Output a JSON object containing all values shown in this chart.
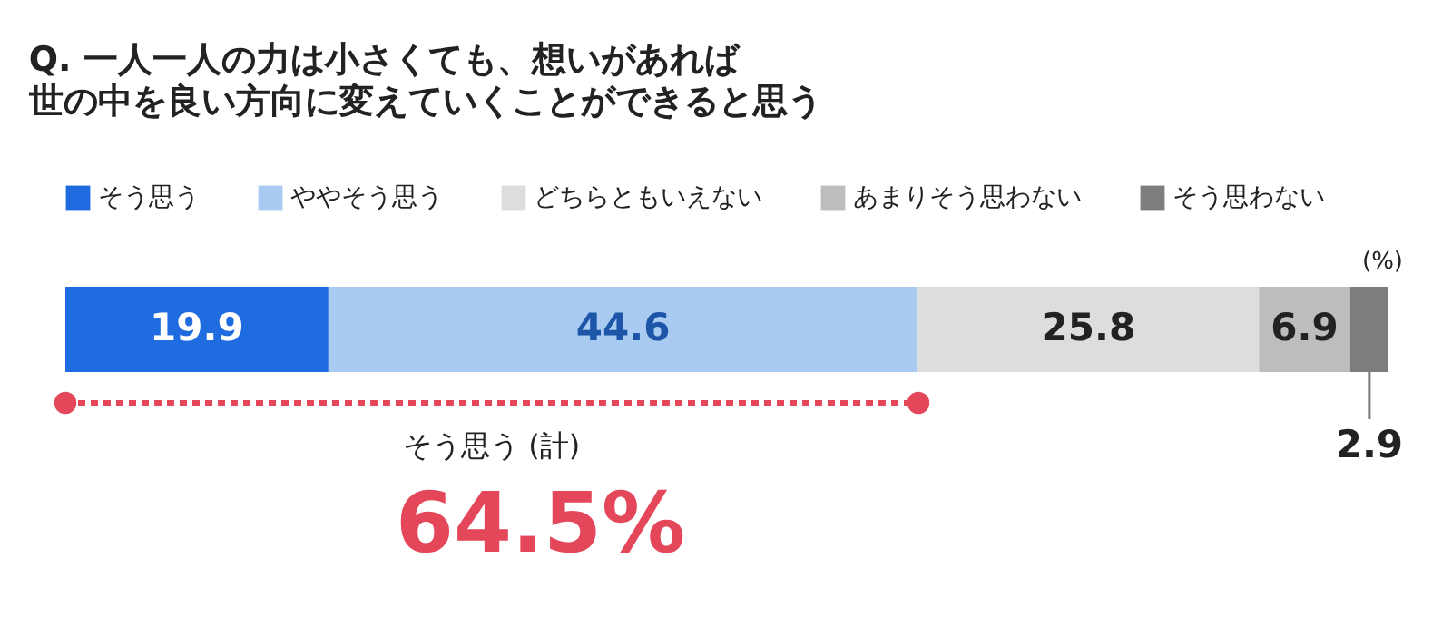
{
  "chart_data": {
    "type": "bar",
    "orientation": "horizontal",
    "stacked": true,
    "data_labels": true,
    "legend": "top left",
    "title": "Q. 一人一人の力は小さくても、想いがあれば",
    "subtitle": "世の中を良い方向に変えていくことができると思う",
    "categories": [
      null
    ],
    "series": [
      {
        "name": "そう思う",
        "color": "#1f6be0",
        "values": [
          19.9
        ]
      },
      {
        "name": "ややそう思う",
        "color": "#a9cbf1",
        "values": [
          44.6
        ]
      },
      {
        "name": "どちらともいえない",
        "color": "#dddddd",
        "values": [
          25.8
        ]
      },
      {
        "name": "あまりそう思わない",
        "color": "#bdbdbd",
        "values": [
          6.9
        ]
      },
      {
        "name": "そう思わない",
        "color": "#7d7d7d",
        "values": [
          2.9
        ]
      }
    ],
    "annotations": [
      "(%)",
      "そう思う (計)",
      "64.5%"
    ]
  }
}
